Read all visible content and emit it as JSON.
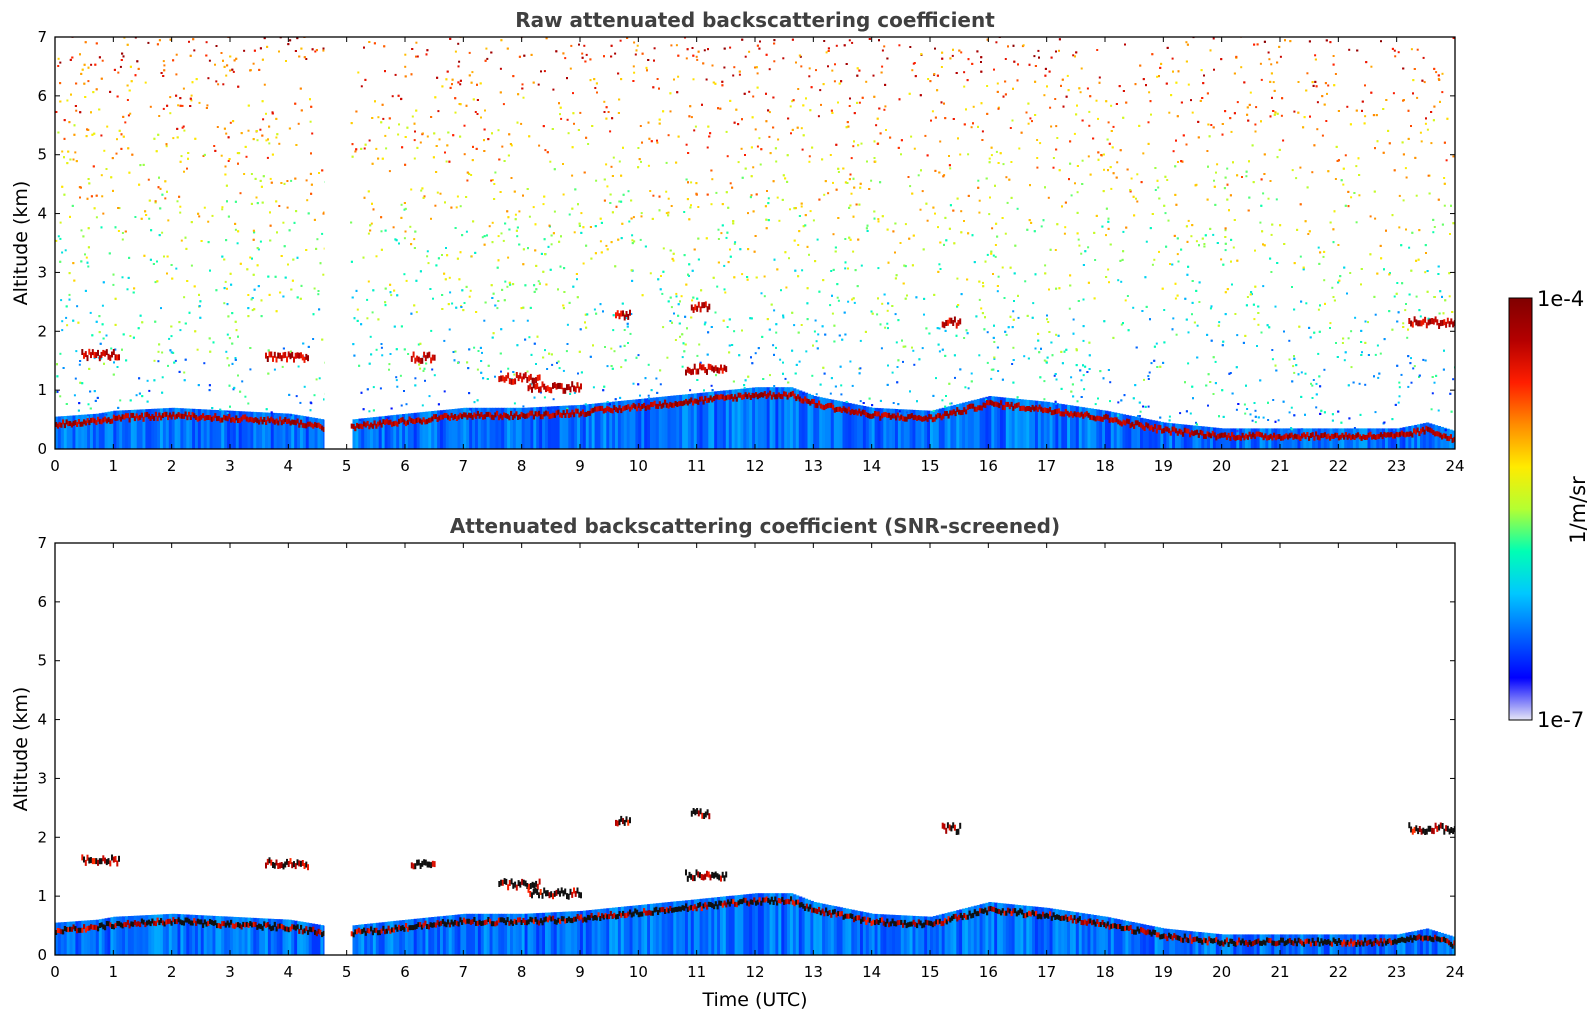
{
  "chart_data": [
    {
      "type": "heatmap",
      "title": "Raw attenuated backscattering coefficient",
      "xlabel": "",
      "ylabel": "Altitude (km)",
      "xlim": [
        0,
        24
      ],
      "ylim": [
        0,
        7
      ],
      "x_ticks": [
        0,
        1,
        2,
        3,
        4,
        5,
        6,
        7,
        8,
        9,
        10,
        11,
        12,
        13,
        14,
        15,
        16,
        17,
        18,
        19,
        20,
        21,
        22,
        23,
        24
      ],
      "y_ticks": [
        0,
        1,
        2,
        3,
        4,
        5,
        6,
        7
      ],
      "data_gap": [
        4.62,
        5.05
      ],
      "noise_field": "noisy signal throughout column; higher values aloft",
      "layer_height_km": [
        {
          "t": 0.0,
          "h": 0.4
        },
        {
          "t": 0.7,
          "h": 0.45
        },
        {
          "t": 1.0,
          "h": 0.5
        },
        {
          "t": 2.0,
          "h": 0.55
        },
        {
          "t": 3.0,
          "h": 0.5
        },
        {
          "t": 4.0,
          "h": 0.45
        },
        {
          "t": 4.6,
          "h": 0.35
        },
        {
          "t": 5.05,
          "h": 0.35
        },
        {
          "t": 6.0,
          "h": 0.45
        },
        {
          "t": 7.0,
          "h": 0.55
        },
        {
          "t": 8.0,
          "h": 0.55
        },
        {
          "t": 9.0,
          "h": 0.6
        },
        {
          "t": 10.0,
          "h": 0.7
        },
        {
          "t": 11.0,
          "h": 0.8
        },
        {
          "t": 12.0,
          "h": 0.9
        },
        {
          "t": 12.6,
          "h": 0.9
        },
        {
          "t": 13.0,
          "h": 0.75
        },
        {
          "t": 14.0,
          "h": 0.55
        },
        {
          "t": 15.0,
          "h": 0.5
        },
        {
          "t": 16.0,
          "h": 0.75
        },
        {
          "t": 17.0,
          "h": 0.65
        },
        {
          "t": 18.0,
          "h": 0.5
        },
        {
          "t": 19.0,
          "h": 0.3
        },
        {
          "t": 20.0,
          "h": 0.2
        },
        {
          "t": 21.0,
          "h": 0.2
        },
        {
          "t": 22.0,
          "h": 0.2
        },
        {
          "t": 23.0,
          "h": 0.2
        },
        {
          "t": 23.5,
          "h": 0.3
        },
        {
          "t": 24.0,
          "h": 0.15
        }
      ]
    },
    {
      "type": "heatmap",
      "title": "Attenuated backscattering coefficient (SNR-screened)",
      "xlabel": "Time (UTC)",
      "ylabel": "Altitude (km)",
      "xlim": [
        0,
        24
      ],
      "ylim": [
        0,
        7
      ],
      "x_ticks": [
        0,
        1,
        2,
        3,
        4,
        5,
        6,
        7,
        8,
        9,
        10,
        11,
        12,
        13,
        14,
        15,
        16,
        17,
        18,
        19,
        20,
        21,
        22,
        23,
        24
      ],
      "y_ticks": [
        0,
        1,
        2,
        3,
        4,
        5,
        6,
        7
      ],
      "data_gap": [
        4.62,
        5.05
      ],
      "noise_field": "screened out (white) above aerosol layer",
      "layer_height_km": "same as raw panel"
    }
  ],
  "colorbar": {
    "min_label": "1e-7",
    "max_label": "1e-4",
    "label": "1/m/sr",
    "colormap": [
      "#e6e6f5",
      "#0000ff",
      "#0064ff",
      "#00c8ff",
      "#00ffb4",
      "#b4ff32",
      "#ffeb00",
      "#ff8c00",
      "#ff1e00",
      "#b40000",
      "#800000"
    ]
  },
  "elevated_features": [
    {
      "t0": 0.45,
      "t1": 1.1,
      "h": 1.65
    },
    {
      "t0": 3.6,
      "t1": 4.35,
      "h": 1.6
    },
    {
      "t0": 6.1,
      "t1": 6.5,
      "h": 1.6
    },
    {
      "t0": 7.6,
      "t1": 8.3,
      "h": 1.25
    },
    {
      "t0": 8.1,
      "t1": 9.0,
      "h": 1.1
    },
    {
      "t0": 9.6,
      "t1": 9.85,
      "h": 2.32
    },
    {
      "t0": 10.9,
      "t1": 11.2,
      "h": 2.45
    },
    {
      "t0": 10.8,
      "t1": 11.5,
      "h": 1.4
    },
    {
      "t0": 15.2,
      "t1": 15.5,
      "h": 2.2
    },
    {
      "t0": 23.2,
      "t1": 24.0,
      "h": 2.2
    }
  ]
}
